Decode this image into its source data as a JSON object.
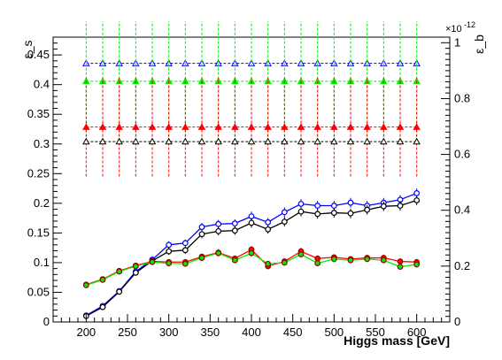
{
  "chart_data": {
    "type": "line",
    "xlabel": "Higgs mass [GeV]",
    "ylabel_left": "ε_s",
    "ylabel_right": "ε_b",
    "right_axis_exponent": "×10",
    "right_axis_exponent_power": "-12",
    "xlim": [
      160,
      640
    ],
    "ylim_left": [
      0,
      0.48
    ],
    "ylim_right": [
      0,
      1.02
    ],
    "x_ticks": [
      200,
      250,
      300,
      350,
      400,
      450,
      500,
      550,
      600
    ],
    "y_ticks_left": [
      0,
      0.05,
      0.1,
      0.15,
      0.2,
      0.25,
      0.3,
      0.35,
      0.4,
      0.45
    ],
    "y_ticks_right": [
      0,
      0.2,
      0.4,
      0.6,
      0.8,
      1
    ],
    "x": [
      200,
      220,
      240,
      260,
      280,
      300,
      320,
      340,
      360,
      380,
      400,
      420,
      440,
      460,
      480,
      500,
      520,
      540,
      560,
      580,
      600
    ],
    "series": [
      {
        "color": "#0000ff",
        "marker": "circle-open",
        "axis": "left",
        "line": "solid",
        "values": [
          0.011,
          0.027,
          0.052,
          0.085,
          0.105,
          0.13,
          0.133,
          0.16,
          0.165,
          0.166,
          0.178,
          0.168,
          0.185,
          0.199,
          0.196,
          0.196,
          0.201,
          0.196,
          0.201,
          0.206,
          0.217
        ],
        "errors": [
          0.003,
          0.003,
          0.003,
          0.004,
          0.005,
          0.006,
          0.006,
          0.007,
          0.007,
          0.007,
          0.008,
          0.007,
          0.008,
          0.008,
          0.008,
          0.008,
          0.008,
          0.008,
          0.008,
          0.008,
          0.008
        ]
      },
      {
        "color": "#000000",
        "marker": "circle-open",
        "axis": "left",
        "line": "solid",
        "values": [
          0.01,
          0.025,
          0.051,
          0.083,
          0.103,
          0.119,
          0.121,
          0.148,
          0.153,
          0.154,
          0.167,
          0.156,
          0.169,
          0.186,
          0.182,
          0.184,
          0.183,
          0.189,
          0.195,
          0.196,
          0.205
        ],
        "errors": [
          0.003,
          0.003,
          0.003,
          0.004,
          0.005,
          0.006,
          0.006,
          0.007,
          0.007,
          0.007,
          0.008,
          0.007,
          0.008,
          0.008,
          0.008,
          0.008,
          0.008,
          0.008,
          0.008,
          0.008,
          0.008
        ]
      },
      {
        "color": "#ff0000",
        "marker": "circle-filled",
        "axis": "left",
        "line": "solid",
        "values": [
          0.063,
          0.072,
          0.086,
          0.095,
          0.102,
          0.101,
          0.101,
          0.11,
          0.117,
          0.107,
          0.122,
          0.094,
          0.102,
          0.119,
          0.107,
          0.109,
          0.106,
          0.108,
          0.108,
          0.102,
          0.101
        ],
        "errors": [
          0.004,
          0.004,
          0.004,
          0.004,
          0.005,
          0.005,
          0.005,
          0.005,
          0.006,
          0.005,
          0.006,
          0.005,
          0.005,
          0.006,
          0.005,
          0.005,
          0.005,
          0.005,
          0.005,
          0.005,
          0.005
        ]
      },
      {
        "color": "#00ee00",
        "marker": "circle-filled",
        "axis": "left",
        "line": "solid",
        "values": [
          0.062,
          0.071,
          0.085,
          0.094,
          0.101,
          0.099,
          0.098,
          0.108,
          0.116,
          0.104,
          0.116,
          0.098,
          0.1,
          0.114,
          0.099,
          0.106,
          0.104,
          0.106,
          0.104,
          0.093,
          0.097
        ],
        "errors": [
          0.004,
          0.004,
          0.004,
          0.004,
          0.005,
          0.005,
          0.005,
          0.005,
          0.006,
          0.005,
          0.006,
          0.005,
          0.005,
          0.006,
          0.005,
          0.005,
          0.005,
          0.005,
          0.005,
          0.005,
          0.005
        ]
      },
      {
        "color": "#0000ff",
        "marker": "triangle-open",
        "axis": "right",
        "line": "dashed",
        "values": [
          0.926,
          0.926,
          0.926,
          0.926,
          0.926,
          0.926,
          0.926,
          0.926,
          0.926,
          0.926,
          0.926,
          0.926,
          0.926,
          0.926,
          0.926,
          0.926,
          0.926,
          0.926,
          0.926,
          0.926,
          0.926
        ],
        "errors": [
          0,
          0,
          0,
          0,
          0,
          0,
          0,
          0,
          0,
          0,
          0,
          0,
          0,
          0,
          0,
          0,
          0,
          0,
          0,
          0,
          0
        ]
      },
      {
        "color": "#00ee00",
        "marker": "triangle-filled",
        "axis": "right",
        "line": "dashed",
        "values": [
          0.862,
          0.862,
          0.862,
          0.862,
          0.862,
          0.862,
          0.862,
          0.862,
          0.862,
          0.862,
          0.862,
          0.862,
          0.862,
          0.862,
          0.862,
          0.862,
          0.862,
          0.862,
          0.862,
          0.862,
          0.862
        ],
        "errors": [
          0.215,
          0.215,
          0.215,
          0.215,
          0.215,
          0.215,
          0.215,
          0.215,
          0.215,
          0.215,
          0.215,
          0.215,
          0.215,
          0.215,
          0.215,
          0.215,
          0.215,
          0.215,
          0.215,
          0.215,
          0.215
        ]
      },
      {
        "color": "#ff0000",
        "marker": "triangle-filled",
        "axis": "right",
        "line": "dashed",
        "values": [
          0.698,
          0.698,
          0.698,
          0.698,
          0.698,
          0.698,
          0.698,
          0.698,
          0.698,
          0.698,
          0.698,
          0.698,
          0.698,
          0.698,
          0.698,
          0.698,
          0.698,
          0.698,
          0.698,
          0.698,
          0.698
        ],
        "errors": [
          0.177,
          0.177,
          0.177,
          0.177,
          0.177,
          0.177,
          0.177,
          0.177,
          0.177,
          0.177,
          0.177,
          0.177,
          0.177,
          0.177,
          0.177,
          0.177,
          0.177,
          0.177,
          0.177,
          0.177,
          0.177
        ]
      },
      {
        "color": "#000000",
        "marker": "triangle-open",
        "axis": "right",
        "line": "dashed",
        "values": [
          0.646,
          0.646,
          0.646,
          0.646,
          0.646,
          0.646,
          0.646,
          0.646,
          0.646,
          0.646,
          0.646,
          0.646,
          0.646,
          0.646,
          0.646,
          0.646,
          0.646,
          0.646,
          0.646,
          0.646,
          0.646
        ],
        "errors": [
          0,
          0,
          0,
          0,
          0,
          0,
          0,
          0,
          0,
          0,
          0,
          0,
          0,
          0,
          0,
          0,
          0,
          0,
          0,
          0,
          0
        ]
      }
    ],
    "grid": false,
    "legend": "none"
  }
}
